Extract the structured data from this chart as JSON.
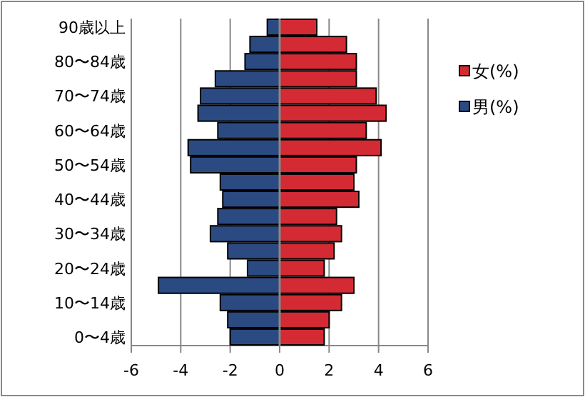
{
  "chart_data": {
    "type": "bar",
    "orientation": "horizontal",
    "stacked": true,
    "categories": [
      "90歳以上",
      null,
      "80〜84歳",
      null,
      "70〜74歳",
      null,
      "60〜64歳",
      null,
      "50〜54歳",
      null,
      "40〜44歳",
      null,
      "30〜34歳",
      null,
      "20〜24歳",
      null,
      "10〜14歳",
      null,
      "0〜4歳"
    ],
    "series": [
      {
        "name": "女(%)",
        "color": "#d42a34",
        "values": [
          1.5,
          2.7,
          3.1,
          3.1,
          3.9,
          4.3,
          3.5,
          4.1,
          3.1,
          3.0,
          3.2,
          2.3,
          2.5,
          2.2,
          1.8,
          3.0,
          2.5,
          2.0,
          1.8
        ]
      },
      {
        "name": "男(%)",
        "color": "#2c4a82",
        "values": [
          -0.5,
          -1.2,
          -1.4,
          -2.6,
          -3.2,
          -3.3,
          -2.5,
          -3.7,
          -3.6,
          -2.4,
          -2.3,
          -2.5,
          -2.8,
          -2.1,
          -1.3,
          -4.9,
          -2.4,
          -2.1,
          -2.0
        ]
      }
    ],
    "xlim": [
      -6,
      6
    ],
    "xticks": [
      -6,
      -4,
      -2,
      0,
      2,
      4,
      6
    ],
    "grid": "x",
    "legend": "right"
  }
}
